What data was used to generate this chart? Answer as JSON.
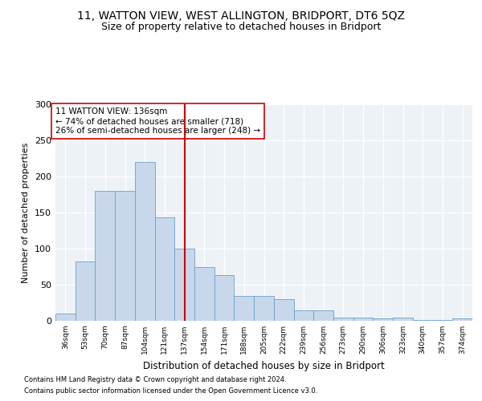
{
  "title1": "11, WATTON VIEW, WEST ALLINGTON, BRIDPORT, DT6 5QZ",
  "title2": "Size of property relative to detached houses in Bridport",
  "xlabel": "Distribution of detached houses by size in Bridport",
  "ylabel": "Number of detached properties",
  "categories": [
    "36sqm",
    "53sqm",
    "70sqm",
    "87sqm",
    "104sqm",
    "121sqm",
    "137sqm",
    "154sqm",
    "171sqm",
    "188sqm",
    "205sqm",
    "222sqm",
    "239sqm",
    "256sqm",
    "273sqm",
    "290sqm",
    "306sqm",
    "323sqm",
    "340sqm",
    "357sqm",
    "374sqm"
  ],
  "values": [
    10,
    82,
    180,
    180,
    220,
    143,
    100,
    75,
    63,
    35,
    34,
    30,
    15,
    15,
    4,
    4,
    3,
    4,
    1,
    1,
    3
  ],
  "bar_color": "#c8d8ea",
  "bar_edge_color": "#6aa0c8",
  "vline_color": "#cc0000",
  "annotation_text": "11 WATTON VIEW: 136sqm\n← 74% of detached houses are smaller (718)\n26% of semi-detached houses are larger (248) →",
  "footer1": "Contains HM Land Registry data © Crown copyright and database right 2024.",
  "footer2": "Contains public sector information licensed under the Open Government Licence v3.0.",
  "ylim": [
    0,
    300
  ],
  "yticks": [
    0,
    50,
    100,
    150,
    200,
    250,
    300
  ],
  "title1_fontsize": 10,
  "title2_fontsize": 9,
  "bg_color": "#edf2f7"
}
